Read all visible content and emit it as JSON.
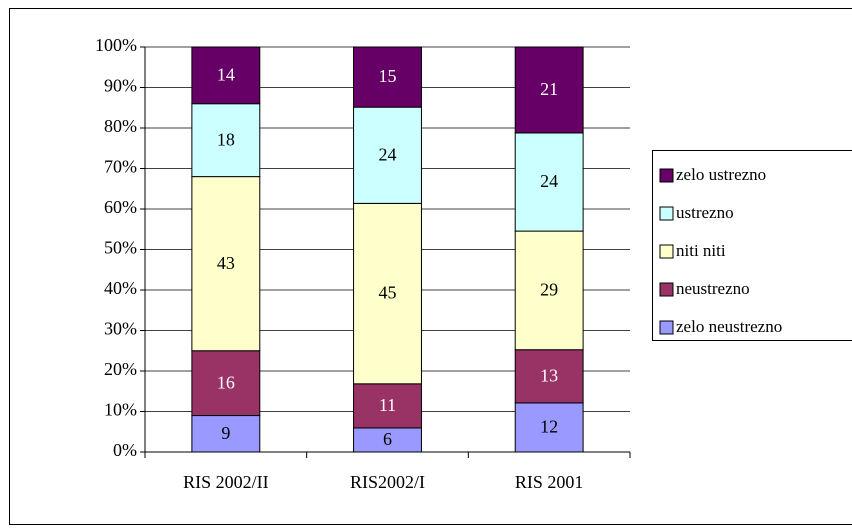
{
  "chart_data": {
    "type": "bar",
    "stacking": "percent",
    "categories": [
      "RIS 2002/II",
      "RIS2002/I",
      "RIS 2001"
    ],
    "series": [
      {
        "name": "zelo neustrezno",
        "color": "#9999ff",
        "values": [
          9,
          6,
          12
        ]
      },
      {
        "name": "neustrezno",
        "color": "#993366",
        "values": [
          16,
          11,
          13
        ]
      },
      {
        "name": "niti niti",
        "color": "#ffffcc",
        "values": [
          43,
          45,
          29
        ]
      },
      {
        "name": "ustrezno",
        "color": "#ccffff",
        "values": [
          18,
          24,
          24
        ]
      },
      {
        "name": "zelo ustrezno",
        "color": "#660066",
        "values": [
          14,
          15,
          21
        ]
      }
    ],
    "ylim": [
      0,
      100
    ],
    "yticks": [
      {
        "value": 0,
        "label": "0%"
      },
      {
        "value": 10,
        "label": "10%"
      },
      {
        "value": 20,
        "label": "20%"
      },
      {
        "value": 30,
        "label": "30%"
      },
      {
        "value": 40,
        "label": "40%"
      },
      {
        "value": 50,
        "label": "50%"
      },
      {
        "value": 60,
        "label": "60%"
      },
      {
        "value": 70,
        "label": "70%"
      },
      {
        "value": 80,
        "label": "80%"
      },
      {
        "value": 90,
        "label": "90%"
      },
      {
        "value": 100,
        "label": "100%"
      }
    ],
    "grid": true,
    "legend": "right"
  }
}
